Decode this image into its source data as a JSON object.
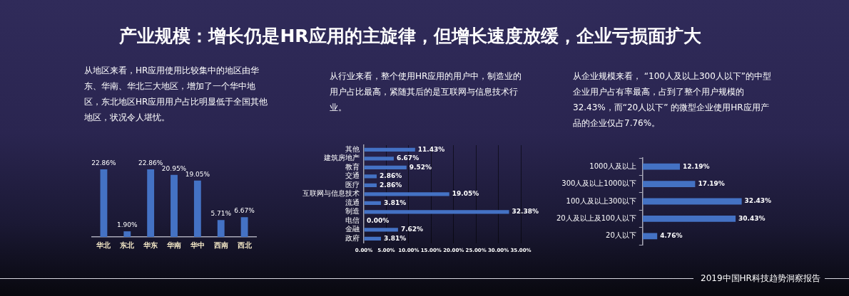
{
  "chart_data": [
    {
      "type": "bar",
      "title": "产业规模：增长仍是HR应用的主旋律，但增长速度放缓，企业亏损面扩大",
      "subtitle": "从地区来看，HR应用使用比较集中的地区由华东、华南、华北三大地区，增加了一个华中地区，东北地区HR应用用户占比明显低于全国其他地区，状况令人堪忧。",
      "categories": [
        "华北",
        "东北",
        "华东",
        "华南",
        "华中",
        "西南",
        "西北"
      ],
      "values": [
        22.86,
        1.9,
        22.86,
        20.95,
        19.05,
        5.71,
        6.67
      ],
      "value_labels": [
        "22.86%",
        "1.90%",
        "22.86%",
        "20.95%",
        "19.05%",
        "5.71%",
        "6.67%"
      ],
      "color": "#4472c4",
      "grid": false
    },
    {
      "type": "bar",
      "orientation": "horizontal",
      "subtitle": "从行业来看，整个使用HR应用的用户中，制造业的用户占比最高，紧随其后的是互联网与信息技术行业。",
      "categories": [
        "其他",
        "建筑房地产",
        "教育",
        "交通",
        "医疗",
        "互联网与信息技术",
        "流通",
        "制造",
        "电信",
        "金融",
        "政府"
      ],
      "values": [
        11.43,
        6.67,
        9.52,
        2.86,
        2.86,
        19.05,
        3.81,
        32.38,
        0.0,
        7.62,
        3.81
      ],
      "value_labels": [
        "11.43%",
        "6.67%",
        "9.52%",
        "2.86%",
        "2.86%",
        "19.05%",
        "3.81%",
        "32.38%",
        "0.00%",
        "7.62%",
        "3.81%"
      ],
      "color": "#4472c4",
      "xlim": [
        0,
        35
      ],
      "xticks": [
        {
          "value": 0,
          "label": "0.00%"
        },
        {
          "value": 5,
          "label": "5.00%"
        },
        {
          "value": 10,
          "label": "10.00%"
        },
        {
          "value": 15,
          "label": "15.00%"
        },
        {
          "value": 20,
          "label": "20.00%"
        },
        {
          "value": 25,
          "label": "25.00%"
        },
        {
          "value": 30,
          "label": "30.00%"
        },
        {
          "value": 35,
          "label": "35.00%"
        }
      ],
      "grid": "x"
    },
    {
      "type": "bar",
      "orientation": "horizontal",
      "subtitle": "从企业规模来看， “100人及以上300人以下”的中型企业用户占有率最高，占到了整个用户规模的32.43%，而“20人以下” 的微型企业使用HR应用产品的企业仅占7.76%。",
      "categories": [
        "1000人及以上",
        "300人及以上1000以下",
        "100人及以上300以下",
        "20人及以上及100人以下",
        "20人以下"
      ],
      "values": [
        12.19,
        17.19,
        32.43,
        30.43,
        4.76
      ],
      "value_labels": [
        "12.19%",
        "17.19%",
        "32.43%",
        "30.43%",
        "4.76%"
      ],
      "color": "#4472c4",
      "grid": false,
      "annotations": [
        "2019中国HR科技趋势洞察报告"
      ]
    }
  ]
}
